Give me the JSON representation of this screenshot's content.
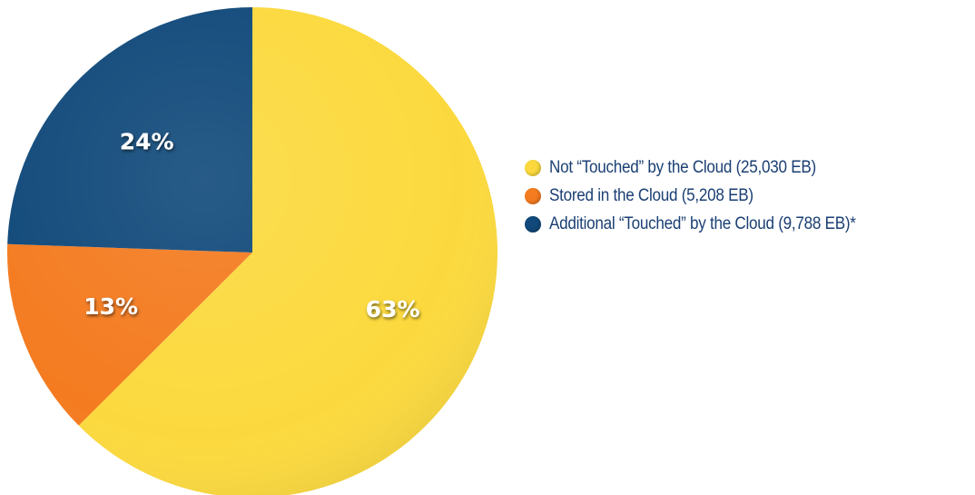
{
  "chart_data": {
    "type": "pie",
    "title": "",
    "slices": [
      {
        "label": "Not “Touched” by the Cloud (25,030 EB)",
        "value": 25030,
        "percent_label": "63%",
        "color": "#fbd93e"
      },
      {
        "label": "Stored in the Cloud (5,208 EB)",
        "value": 5208,
        "percent_label": "13%",
        "color": "#f47b20"
      },
      {
        "label": "Additional “Touched” by the Cloud (9,788 EB)*",
        "value": 9788,
        "percent_label": "24%",
        "color": "#10497a"
      }
    ],
    "legend_position": "right",
    "start_angle": "12 o'clock",
    "direction": "clockwise"
  }
}
